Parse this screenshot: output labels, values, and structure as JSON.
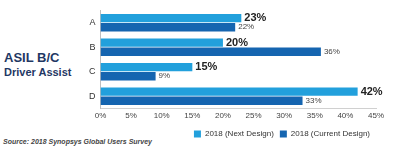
{
  "chart_data": {
    "type": "bar",
    "orientation": "horizontal",
    "title": [
      "ASIL B/C",
      "Driver Assist"
    ],
    "source": "Source: 2018 Synopsys Global Users Survey",
    "categories": [
      "A",
      "B",
      "C",
      "D"
    ],
    "series": [
      {
        "name": "2018 (Next Design)",
        "color": "#22a0dc",
        "values": [
          23,
          20,
          15,
          42
        ],
        "value_labels": [
          "23%",
          "20%",
          "15%",
          "42%"
        ]
      },
      {
        "name": "2018 (Current Design)",
        "color": "#1565b0",
        "values": [
          22,
          36,
          9,
          33
        ],
        "value_labels": [
          "22%",
          "36%",
          "9%",
          "33%"
        ]
      }
    ],
    "xlim": [
      0,
      45
    ],
    "xticks": [
      {
        "value": 0,
        "label": "0%"
      },
      {
        "value": 5,
        "label": "5%"
      },
      {
        "value": 10,
        "label": "10%"
      },
      {
        "value": 15,
        "label": "15%"
      },
      {
        "value": 20,
        "label": "20%"
      },
      {
        "value": 25,
        "label": "25%"
      },
      {
        "value": 30,
        "label": "30%"
      },
      {
        "value": 35,
        "label": "35%"
      },
      {
        "value": 40,
        "label": "40%"
      },
      {
        "value": 45,
        "label": "45%"
      }
    ],
    "grid": false,
    "legend": "bottom right",
    "data_labels": true
  }
}
